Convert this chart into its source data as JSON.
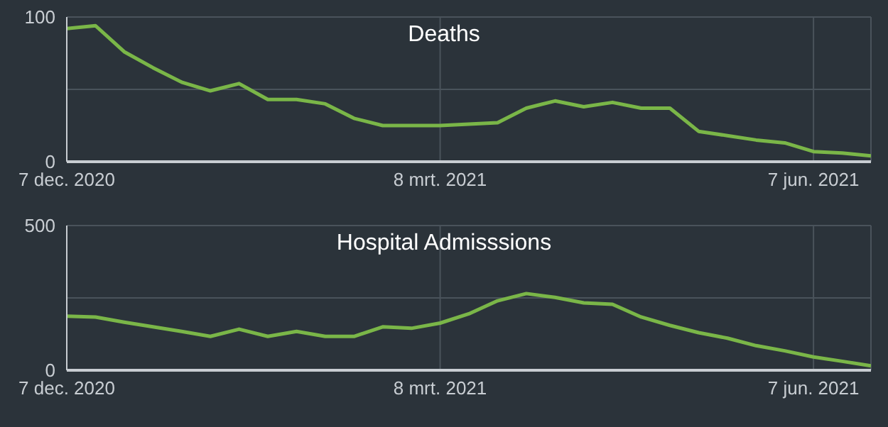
{
  "chart_data": [
    {
      "type": "line",
      "title": "Deaths",
      "x": [
        "2020-12-07",
        "2020-12-14",
        "2020-12-21",
        "2020-12-28",
        "2021-01-04",
        "2021-01-11",
        "2021-01-18",
        "2021-01-25",
        "2021-02-01",
        "2021-02-08",
        "2021-02-15",
        "2021-02-22",
        "2021-03-01",
        "2021-03-08",
        "2021-03-15",
        "2021-03-22",
        "2021-03-29",
        "2021-04-05",
        "2021-04-12",
        "2021-04-19",
        "2021-04-26",
        "2021-05-03",
        "2021-05-10",
        "2021-05-17",
        "2021-05-24",
        "2021-05-31",
        "2021-06-07",
        "2021-06-14",
        "2021-06-21"
      ],
      "series": [
        {
          "color": "#7ab648",
          "values": [
            92,
            94,
            76,
            65,
            55,
            49,
            54,
            43,
            43,
            40,
            30,
            25,
            25,
            25,
            26,
            27,
            37,
            42,
            38,
            41,
            37,
            37,
            21,
            18,
            15,
            13,
            7,
            6,
            4
          ]
        }
      ],
      "xlim": [
        "2020-12-07",
        "2021-06-21"
      ],
      "xticks": [
        {
          "value": "2020-12-07",
          "label": "7 dec. 2020"
        },
        {
          "value": "2021-03-08",
          "label": "8 mrt. 2021"
        },
        {
          "value": "2021-06-07",
          "label": "7 jun. 2021"
        }
      ],
      "ylim": [
        0,
        100
      ],
      "yticks": [
        0,
        {
          "value": 50,
          "label": null
        },
        100
      ],
      "grid": true,
      "marker": "none",
      "line_style": "solid"
    },
    {
      "type": "line",
      "title": "Hospital Admisssions",
      "x": [
        "2020-12-07",
        "2020-12-14",
        "2020-12-21",
        "2020-12-28",
        "2021-01-04",
        "2021-01-11",
        "2021-01-18",
        "2021-01-25",
        "2021-02-01",
        "2021-02-08",
        "2021-02-15",
        "2021-02-22",
        "2021-03-01",
        "2021-03-08",
        "2021-03-15",
        "2021-03-22",
        "2021-03-29",
        "2021-04-05",
        "2021-04-12",
        "2021-04-19",
        "2021-04-26",
        "2021-05-03",
        "2021-05-10",
        "2021-05-17",
        "2021-05-24",
        "2021-05-31",
        "2021-06-07",
        "2021-06-14",
        "2021-06-21"
      ],
      "series": [
        {
          "color": "#7ab648",
          "values": [
            187,
            184,
            166,
            150,
            134,
            117,
            142,
            117,
            134,
            117,
            117,
            150,
            145,
            163,
            195,
            240,
            265,
            252,
            233,
            228,
            184,
            155,
            130,
            111,
            85,
            67,
            46,
            31,
            15
          ]
        }
      ],
      "xlim": [
        "2020-12-07",
        "2021-06-21"
      ],
      "xticks": [
        {
          "value": "2020-12-07",
          "label": "7 dec. 2020"
        },
        {
          "value": "2021-03-08",
          "label": "8 mrt. 2021"
        },
        {
          "value": "2021-06-07",
          "label": "7 jun. 2021"
        }
      ],
      "ylim": [
        0,
        500
      ],
      "yticks": [
        0,
        {
          "value": 250,
          "label": null
        },
        500
      ],
      "grid": true,
      "marker": "none",
      "line_style": "solid"
    }
  ]
}
